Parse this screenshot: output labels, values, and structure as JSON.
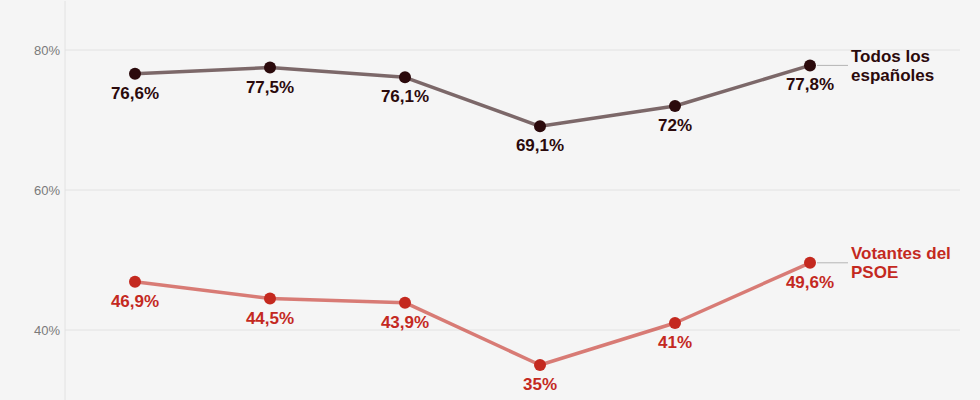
{
  "chart_data": {
    "type": "line",
    "categories": [
      null,
      null,
      null,
      null,
      null,
      null
    ],
    "series": [
      {
        "name": "Todos los españoles",
        "color": "#2b0a0c",
        "marker": "circle",
        "line_style": "solid",
        "values": [
          76.6,
          77.5,
          76.1,
          69.1,
          72,
          77.8
        ],
        "value_labels": [
          "76,6%",
          "77,5%",
          "76,1%",
          "69,1%",
          "72%",
          "77,8%"
        ]
      },
      {
        "name": "Votantes del PSOE",
        "color": "#c4291f",
        "marker": "circle",
        "line_style": "solid",
        "values": [
          46.9,
          44.5,
          43.9,
          35,
          41,
          49.6
        ],
        "value_labels": [
          "46,9%",
          "44,5%",
          "43,9%",
          "35%",
          "41%",
          "49,6%"
        ]
      }
    ],
    "ylim": [
      30,
      87
    ],
    "yticks": [
      {
        "value": 40,
        "label": "40%"
      },
      {
        "value": 60,
        "label": "60%"
      },
      {
        "value": 80,
        "label": "80%"
      }
    ],
    "grid": true,
    "tick_labels": "y",
    "data_labels": true,
    "legend": "right"
  }
}
